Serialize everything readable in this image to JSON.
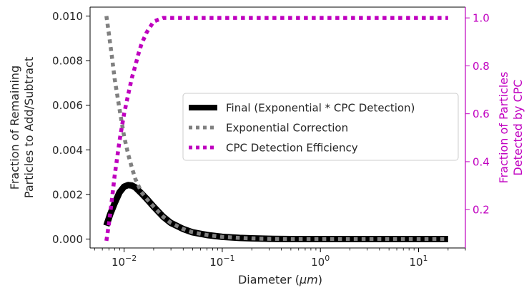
{
  "chart_data": {
    "type": "line",
    "xscale": "log",
    "xlim": [
      0.0045,
      30
    ],
    "xlabel": "Diameter (",
    "xlabel_unit": "μm",
    "xlabel_close": ")",
    "x_ticks": [
      {
        "value": 0.01,
        "base": "10",
        "exp": "−2"
      },
      {
        "value": 0.1,
        "base": "10",
        "exp": "−1"
      },
      {
        "value": 1,
        "base": "10",
        "exp": "0"
      },
      {
        "value": 10,
        "base": "10",
        "exp": "1"
      }
    ],
    "ylabel_left": [
      "Fraction of Remaining",
      "Particles to Add/Subtract"
    ],
    "ylim_left": [
      -0.0004,
      0.0104
    ],
    "y_ticks_left": [
      "0.000",
      "0.002",
      "0.004",
      "0.006",
      "0.008",
      "0.010"
    ],
    "ylabel_right": [
      "Fraction of Particles",
      "Detected by CPC"
    ],
    "ylim_right": [
      0.04,
      1.045
    ],
    "y_ticks_right": [
      "0.2",
      "0.4",
      "0.6",
      "0.8",
      "1.0"
    ],
    "legend_position": "center-right",
    "series": [
      {
        "name": "Final (Exponential * CPC Detection)",
        "axis": "left",
        "color": "#000000",
        "style": "solid",
        "x": [
          0.0066,
          0.0072,
          0.008,
          0.009,
          0.01,
          0.011,
          0.012,
          0.013,
          0.015,
          0.017,
          0.02,
          0.025,
          0.03,
          0.04,
          0.05,
          0.07,
          0.1,
          0.15,
          0.2,
          0.3,
          0.5,
          1,
          2,
          5,
          10,
          20
        ],
        "y": [
          0.0006,
          0.0011,
          0.0016,
          0.0021,
          0.00235,
          0.00242,
          0.0024,
          0.00232,
          0.00205,
          0.0018,
          0.00145,
          0.001,
          0.00072,
          0.00045,
          0.0003,
          0.00018,
          0.0001,
          5e-05,
          3e-05,
          1e-05,
          0.0,
          0.0,
          0.0,
          0.0,
          0.0,
          0.0
        ]
      },
      {
        "name": "Exponential Correction",
        "axis": "left",
        "color": "#808080",
        "style": "dotted",
        "x": [
          0.0066,
          0.007,
          0.0075,
          0.008,
          0.009,
          0.01,
          0.011,
          0.012,
          0.013,
          0.015,
          0.017,
          0.02,
          0.025,
          0.03,
          0.04,
          0.05,
          0.07,
          0.1,
          0.15,
          0.2,
          0.3,
          0.5,
          1,
          2,
          5,
          10,
          20
        ],
        "y": [
          0.01,
          0.0092,
          0.0082,
          0.0072,
          0.0058,
          0.0046,
          0.0038,
          0.0032,
          0.0027,
          0.0021,
          0.0018,
          0.00145,
          0.001,
          0.00072,
          0.00045,
          0.0003,
          0.00018,
          0.0001,
          5e-05,
          3e-05,
          1e-05,
          0.0,
          0.0,
          0.0,
          0.0,
          0.0,
          0.0
        ]
      },
      {
        "name": "CPC Detection Efficiency",
        "axis": "right",
        "color": "#bf00bf",
        "style": "dotted",
        "x": [
          0.0066,
          0.007,
          0.0075,
          0.008,
          0.009,
          0.01,
          0.011,
          0.012,
          0.013,
          0.014,
          0.015,
          0.017,
          0.02,
          0.025,
          0.03,
          0.05,
          0.1,
          0.5,
          1,
          5,
          20
        ],
        "y": [
          0.07,
          0.14,
          0.24,
          0.34,
          0.49,
          0.6,
          0.68,
          0.75,
          0.8,
          0.85,
          0.89,
          0.94,
          0.985,
          1.0,
          1.0,
          1.0,
          1.0,
          1.0,
          1.0,
          1.0,
          1.0
        ]
      }
    ]
  }
}
